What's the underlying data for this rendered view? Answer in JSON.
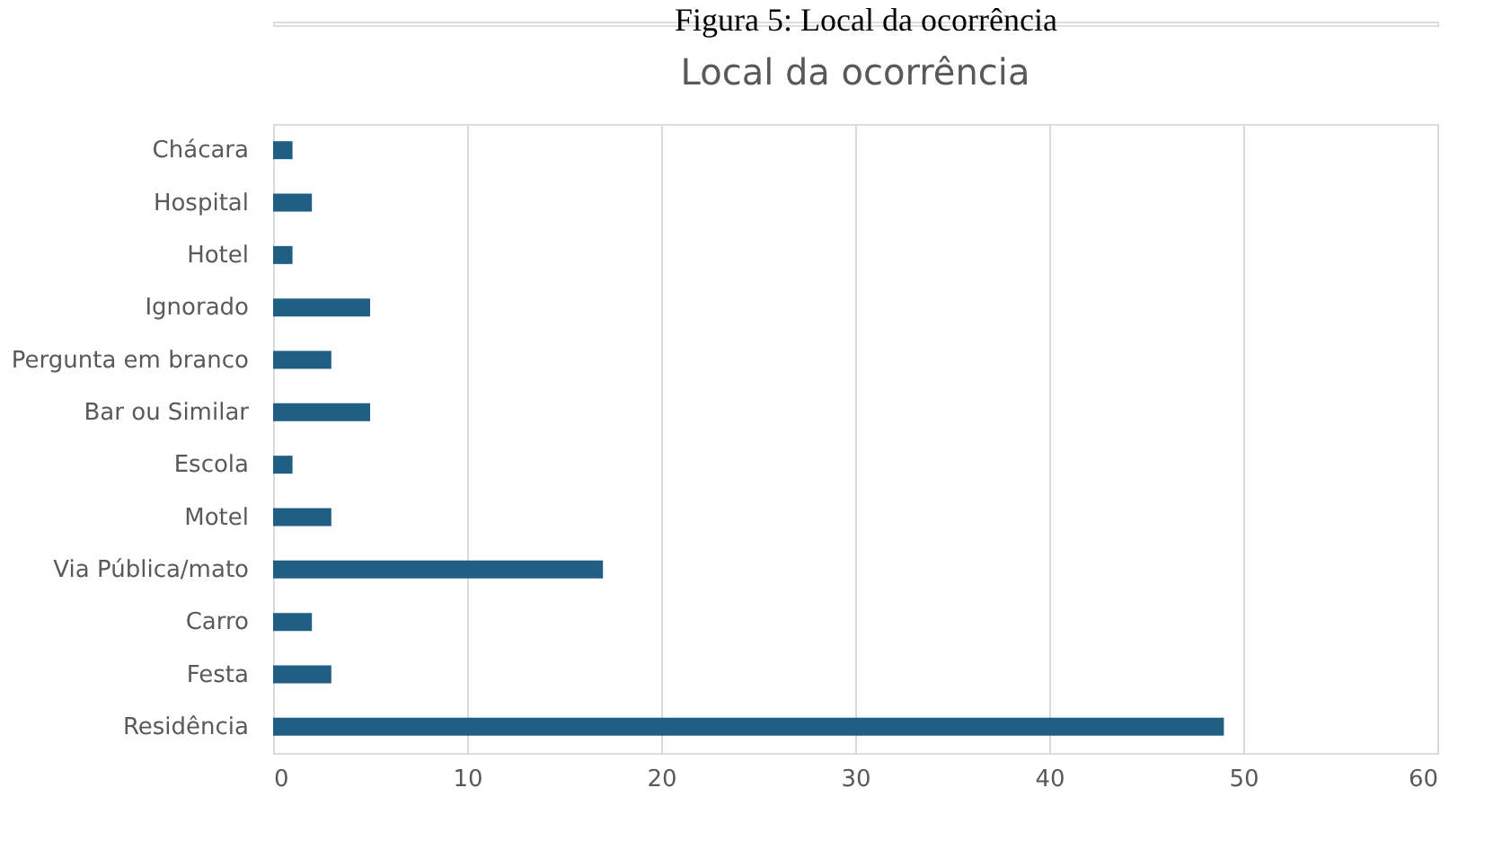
{
  "chart_data": {
    "type": "bar",
    "orientation": "horizontal",
    "title": "Local da ocorrência",
    "annotations": [
      "Figura 5: Local da ocorrência"
    ],
    "categories": [
      "Chácara",
      "Hospital",
      "Hotel",
      "Ignorado",
      "Pergunta em branco",
      "Bar ou Similar",
      "Escola",
      "Motel",
      "Via Pública/mato",
      "Carro",
      "Festa",
      "Residência"
    ],
    "values": [
      1,
      2,
      1,
      5,
      3,
      5,
      1,
      3,
      17,
      2,
      3,
      49
    ],
    "color": "#1f5f84",
    "xlim": [
      0,
      60
    ],
    "xticks": [
      0,
      10,
      20,
      30,
      40,
      50,
      60
    ],
    "grid": "x"
  }
}
